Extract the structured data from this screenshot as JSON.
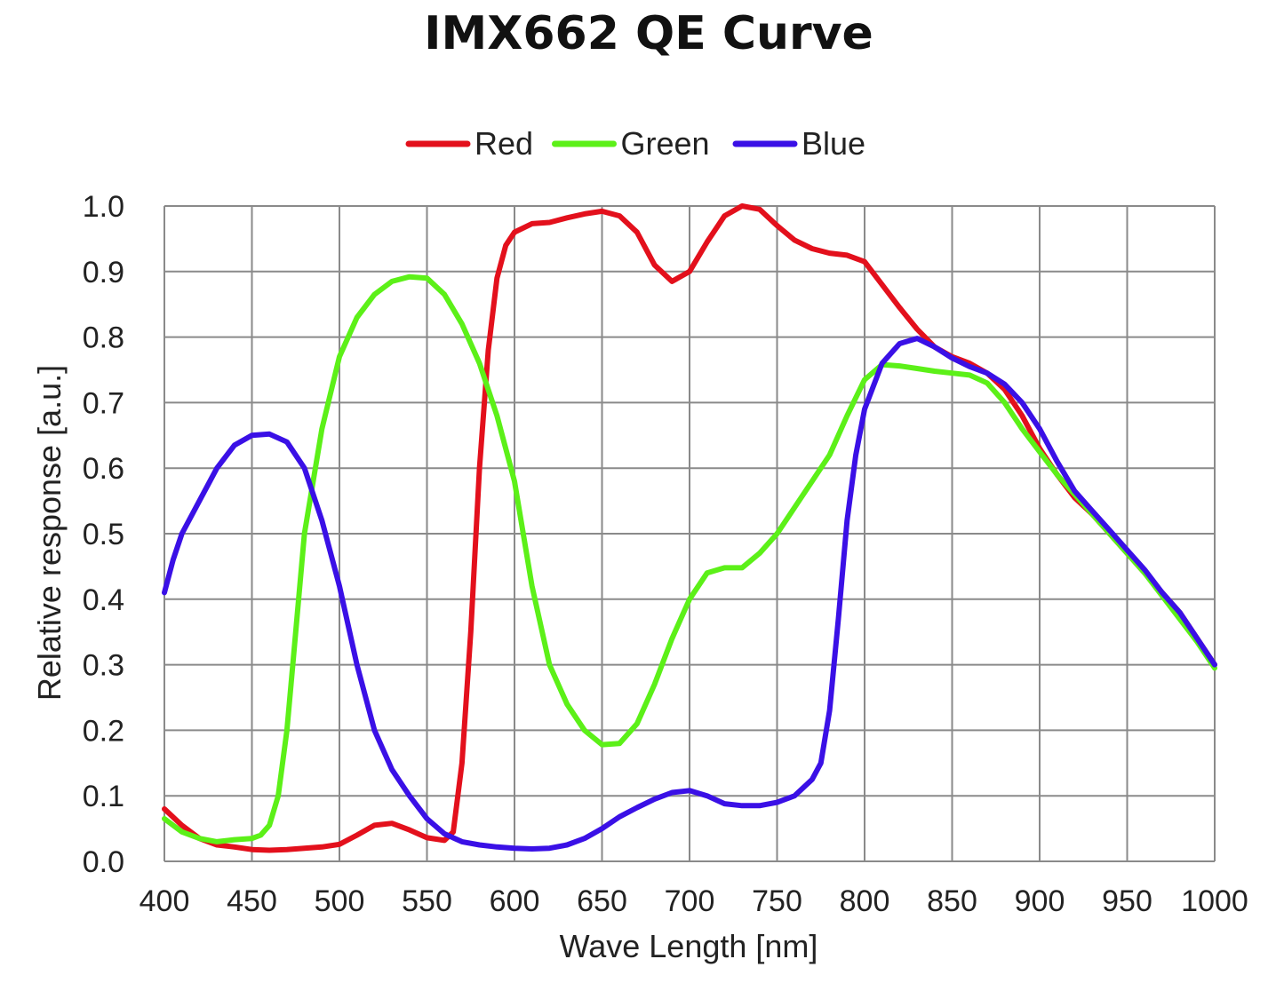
{
  "chart_data": {
    "type": "line",
    "title": "IMX662 QE Curve",
    "xlabel": "Wave Length [nm]",
    "ylabel": "Relative response [a.u.]",
    "xlim": [
      400,
      1000
    ],
    "ylim": [
      0,
      1
    ],
    "x_ticks": [
      "400",
      "450",
      "500",
      "550",
      "600",
      "650",
      "700",
      "750",
      "800",
      "850",
      "900",
      "950",
      "1000"
    ],
    "y_ticks": [
      "0.0",
      "0.1",
      "0.2",
      "0.3",
      "0.4",
      "0.5",
      "0.6",
      "0.7",
      "0.8",
      "0.9",
      "1.0"
    ],
    "grid": true,
    "legend_position": "top-center",
    "series": [
      {
        "name": "Red",
        "color": "#e3101c",
        "points": [
          [
            400,
            0.08
          ],
          [
            410,
            0.055
          ],
          [
            420,
            0.035
          ],
          [
            430,
            0.025
          ],
          [
            440,
            0.022
          ],
          [
            450,
            0.018
          ],
          [
            460,
            0.017
          ],
          [
            470,
            0.018
          ],
          [
            480,
            0.02
          ],
          [
            490,
            0.022
          ],
          [
            500,
            0.026
          ],
          [
            510,
            0.04
          ],
          [
            520,
            0.055
          ],
          [
            530,
            0.058
          ],
          [
            540,
            0.048
          ],
          [
            550,
            0.036
          ],
          [
            560,
            0.032
          ],
          [
            565,
            0.045
          ],
          [
            570,
            0.15
          ],
          [
            575,
            0.35
          ],
          [
            580,
            0.6
          ],
          [
            585,
            0.78
          ],
          [
            590,
            0.89
          ],
          [
            595,
            0.94
          ],
          [
            600,
            0.96
          ],
          [
            610,
            0.973
          ],
          [
            620,
            0.975
          ],
          [
            630,
            0.982
          ],
          [
            640,
            0.988
          ],
          [
            650,
            0.992
          ],
          [
            660,
            0.985
          ],
          [
            670,
            0.96
          ],
          [
            680,
            0.91
          ],
          [
            690,
            0.885
          ],
          [
            700,
            0.9
          ],
          [
            710,
            0.945
          ],
          [
            720,
            0.985
          ],
          [
            730,
            1.0
          ],
          [
            740,
            0.995
          ],
          [
            750,
            0.97
          ],
          [
            760,
            0.948
          ],
          [
            770,
            0.935
          ],
          [
            780,
            0.928
          ],
          [
            790,
            0.925
          ],
          [
            800,
            0.915
          ],
          [
            810,
            0.88
          ],
          [
            820,
            0.845
          ],
          [
            830,
            0.812
          ],
          [
            840,
            0.785
          ],
          [
            850,
            0.77
          ],
          [
            860,
            0.76
          ],
          [
            870,
            0.745
          ],
          [
            880,
            0.72
          ],
          [
            890,
            0.68
          ],
          [
            900,
            0.63
          ],
          [
            910,
            0.59
          ],
          [
            920,
            0.555
          ],
          [
            930,
            0.53
          ],
          [
            940,
            0.5
          ],
          [
            950,
            0.47
          ],
          [
            960,
            0.44
          ],
          [
            970,
            0.41
          ],
          [
            980,
            0.38
          ],
          [
            990,
            0.34
          ],
          [
            1000,
            0.3
          ]
        ]
      },
      {
        "name": "Green",
        "color": "#5cf018",
        "points": [
          [
            400,
            0.065
          ],
          [
            410,
            0.045
          ],
          [
            420,
            0.035
          ],
          [
            430,
            0.03
          ],
          [
            440,
            0.033
          ],
          [
            450,
            0.035
          ],
          [
            455,
            0.04
          ],
          [
            460,
            0.055
          ],
          [
            465,
            0.1
          ],
          [
            470,
            0.2
          ],
          [
            475,
            0.35
          ],
          [
            480,
            0.5
          ],
          [
            490,
            0.66
          ],
          [
            500,
            0.77
          ],
          [
            510,
            0.83
          ],
          [
            520,
            0.865
          ],
          [
            530,
            0.885
          ],
          [
            540,
            0.892
          ],
          [
            550,
            0.89
          ],
          [
            560,
            0.865
          ],
          [
            570,
            0.82
          ],
          [
            580,
            0.76
          ],
          [
            590,
            0.68
          ],
          [
            600,
            0.58
          ],
          [
            610,
            0.42
          ],
          [
            620,
            0.3
          ],
          [
            630,
            0.24
          ],
          [
            640,
            0.2
          ],
          [
            650,
            0.178
          ],
          [
            660,
            0.18
          ],
          [
            670,
            0.21
          ],
          [
            680,
            0.27
          ],
          [
            690,
            0.34
          ],
          [
            700,
            0.4
          ],
          [
            710,
            0.44
          ],
          [
            720,
            0.448
          ],
          [
            730,
            0.448
          ],
          [
            740,
            0.47
          ],
          [
            750,
            0.5
          ],
          [
            760,
            0.54
          ],
          [
            770,
            0.58
          ],
          [
            780,
            0.62
          ],
          [
            790,
            0.68
          ],
          [
            800,
            0.735
          ],
          [
            810,
            0.758
          ],
          [
            820,
            0.756
          ],
          [
            830,
            0.752
          ],
          [
            840,
            0.748
          ],
          [
            850,
            0.745
          ],
          [
            860,
            0.742
          ],
          [
            870,
            0.73
          ],
          [
            880,
            0.7
          ],
          [
            890,
            0.66
          ],
          [
            900,
            0.625
          ],
          [
            910,
            0.59
          ],
          [
            920,
            0.56
          ],
          [
            930,
            0.53
          ],
          [
            940,
            0.5
          ],
          [
            950,
            0.47
          ],
          [
            960,
            0.44
          ],
          [
            970,
            0.405
          ],
          [
            980,
            0.37
          ],
          [
            990,
            0.335
          ],
          [
            1000,
            0.295
          ]
        ]
      },
      {
        "name": "Blue",
        "color": "#3a10e6",
        "points": [
          [
            400,
            0.41
          ],
          [
            405,
            0.46
          ],
          [
            410,
            0.5
          ],
          [
            420,
            0.55
          ],
          [
            430,
            0.6
          ],
          [
            440,
            0.635
          ],
          [
            450,
            0.65
          ],
          [
            460,
            0.652
          ],
          [
            470,
            0.64
          ],
          [
            480,
            0.6
          ],
          [
            490,
            0.52
          ],
          [
            500,
            0.42
          ],
          [
            510,
            0.3
          ],
          [
            520,
            0.2
          ],
          [
            530,
            0.14
          ],
          [
            540,
            0.1
          ],
          [
            550,
            0.065
          ],
          [
            560,
            0.042
          ],
          [
            570,
            0.03
          ],
          [
            580,
            0.025
          ],
          [
            590,
            0.022
          ],
          [
            600,
            0.02
          ],
          [
            610,
            0.019
          ],
          [
            620,
            0.02
          ],
          [
            630,
            0.025
          ],
          [
            640,
            0.035
          ],
          [
            650,
            0.05
          ],
          [
            660,
            0.068
          ],
          [
            670,
            0.082
          ],
          [
            680,
            0.095
          ],
          [
            690,
            0.105
          ],
          [
            700,
            0.108
          ],
          [
            710,
            0.1
          ],
          [
            720,
            0.088
          ],
          [
            730,
            0.085
          ],
          [
            740,
            0.085
          ],
          [
            750,
            0.09
          ],
          [
            760,
            0.1
          ],
          [
            770,
            0.125
          ],
          [
            775,
            0.15
          ],
          [
            780,
            0.23
          ],
          [
            785,
            0.37
          ],
          [
            790,
            0.52
          ],
          [
            795,
            0.62
          ],
          [
            800,
            0.69
          ],
          [
            810,
            0.76
          ],
          [
            820,
            0.79
          ],
          [
            830,
            0.798
          ],
          [
            840,
            0.785
          ],
          [
            850,
            0.768
          ],
          [
            860,
            0.755
          ],
          [
            870,
            0.745
          ],
          [
            880,
            0.728
          ],
          [
            890,
            0.7
          ],
          [
            900,
            0.66
          ],
          [
            910,
            0.61
          ],
          [
            920,
            0.565
          ],
          [
            930,
            0.535
          ],
          [
            940,
            0.505
          ],
          [
            950,
            0.475
          ],
          [
            960,
            0.445
          ],
          [
            970,
            0.41
          ],
          [
            980,
            0.38
          ],
          [
            990,
            0.34
          ],
          [
            1000,
            0.3
          ]
        ]
      }
    ]
  }
}
